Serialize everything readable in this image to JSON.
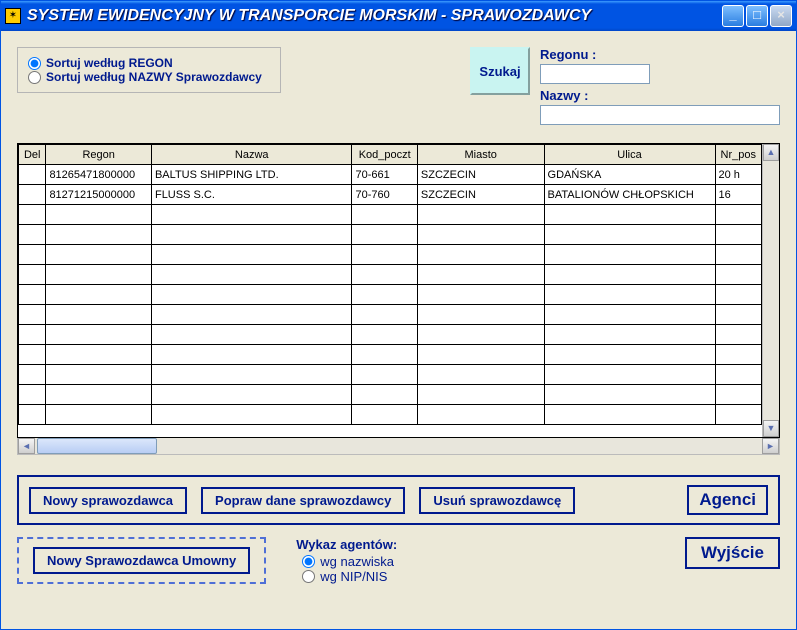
{
  "window": {
    "title": "SYSTEM EWIDENCYJNY W TRANSPORCIE MORSKIM - SPRAWOZDAWCY"
  },
  "sort": {
    "by_regon": "Sortuj według REGON",
    "by_name": "Sortuj według NAZWY Sprawozdawcy",
    "selected": "regon"
  },
  "search": {
    "button": "Szukaj",
    "regon_label": "Regonu :",
    "nazwa_label": "Nazwy :",
    "regon_value": "",
    "nazwa_value": ""
  },
  "grid": {
    "columns": [
      "Del",
      "Regon",
      "Nazwa",
      "Kod_poczt",
      "Miasto",
      "Ulica",
      "Nr_pos"
    ],
    "rows": [
      {
        "del": "",
        "regon": "81265471800000",
        "nazwa": "BALTUS SHIPPING LTD.",
        "kod": "70-661",
        "miasto": "SZCZECIN",
        "ulica": "GDAŃSKA",
        "nr": "20 h"
      },
      {
        "del": "",
        "regon": "81271215000000",
        "nazwa": "FLUSS S.C.",
        "kod": "70-760",
        "miasto": "SZCZECIN",
        "ulica": "BATALIONÓW  CHŁOPSKICH",
        "nr": "16"
      }
    ],
    "empty_rows": 11
  },
  "buttons": {
    "new": "Nowy sprawozdawca",
    "edit": "Popraw dane sprawozdawcy",
    "delete": "Usuń sprawozdawcę",
    "agents": "Agenci",
    "new_contract": "Nowy Sprawozdawca Umowny",
    "exit": "Wyjście"
  },
  "agents_list": {
    "header": "Wykaz agentów:",
    "by_surname": "wg nazwiska",
    "by_nip": "wg NIP/NIS",
    "selected": "surname"
  },
  "colors": {
    "titlebar": "#0054e3",
    "accent": "#001a8e",
    "panel": "#ece9d8",
    "search_btn": "#c9f4f1"
  }
}
